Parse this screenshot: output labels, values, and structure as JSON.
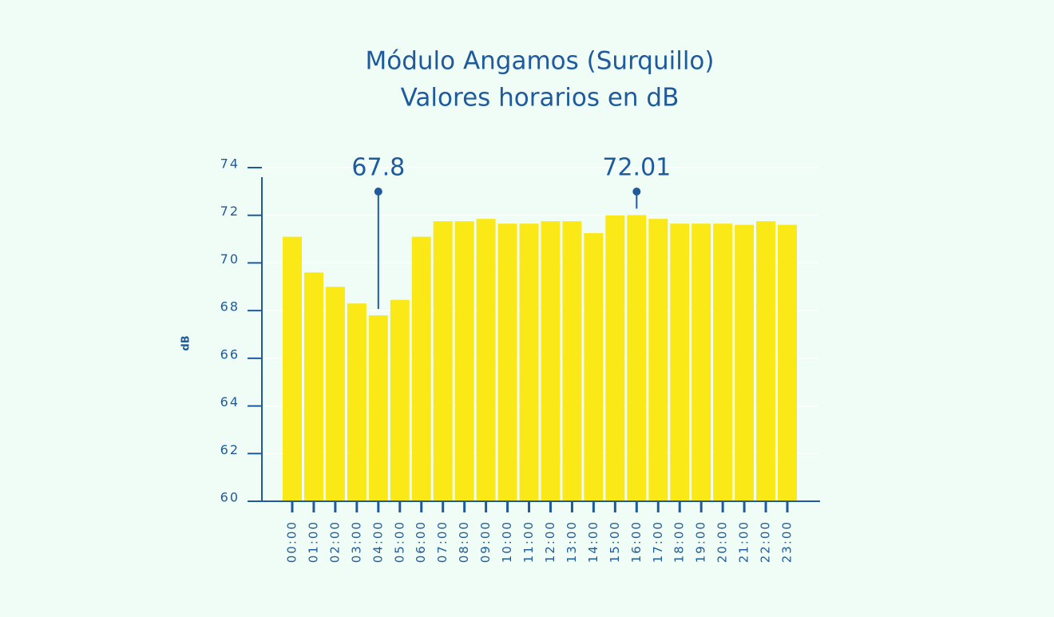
{
  "chart_data": {
    "type": "bar",
    "title": "Módulo Angamos (Surquillo)",
    "subtitle": "Valores horarios en dB",
    "y_label": "dB",
    "categories": [
      "00:00",
      "01:00",
      "02:00",
      "03:00",
      "04:00",
      "05:00",
      "06:00",
      "07:00",
      "08:00",
      "09:00",
      "10:00",
      "11:00",
      "12:00",
      "13:00",
      "14:00",
      "15:00",
      "16:00",
      "17:00",
      "18:00",
      "19:00",
      "20:00",
      "21:00",
      "22:00",
      "23:00"
    ],
    "values": [
      71.1,
      69.6,
      69.0,
      68.3,
      67.8,
      68.45,
      71.1,
      71.75,
      71.75,
      71.85,
      71.65,
      71.65,
      71.75,
      71.75,
      71.25,
      72.0,
      72.01,
      71.85,
      71.65,
      71.65,
      71.65,
      71.6,
      71.75,
      71.6
    ],
    "color": "#fbe817",
    "ylim": [
      60,
      74
    ],
    "yticks": [
      60,
      62,
      64,
      66,
      68,
      70,
      72,
      74
    ],
    "grid": true,
    "annotations": [
      {
        "text": "67.8",
        "x": "04:00"
      },
      {
        "text": "72.01",
        "x": "16:00"
      }
    ]
  }
}
